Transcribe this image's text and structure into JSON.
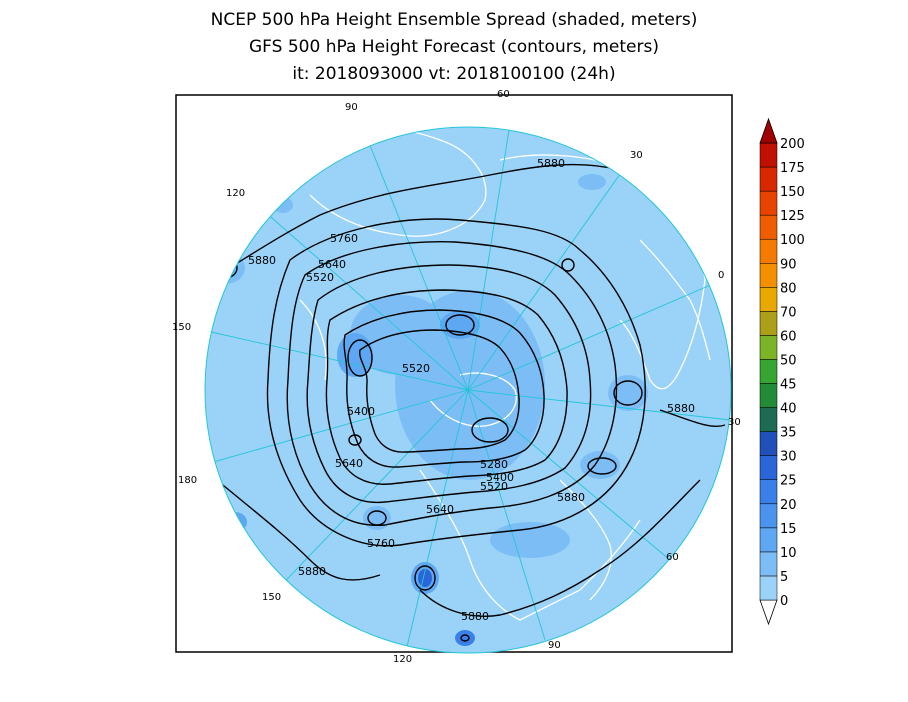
{
  "title": {
    "line1": "NCEP 500 hPa Height Ensemble Spread (shaded, meters)",
    "line2": "GFS 500 hPa Height Forecast (contours, meters)",
    "line3": "it: 2018093000       vt: 2018100100 (24h)"
  },
  "map": {
    "projection": "north-polar-stereographic",
    "ocean_color": "#9ad2f8",
    "land_outline_color": "#ffffff",
    "contour_color": "#000000",
    "longitude_labels": [
      {
        "text": "60"
      },
      {
        "text": "30"
      },
      {
        "text": "0"
      },
      {
        "text": "30"
      },
      {
        "text": "60"
      },
      {
        "text": "90"
      },
      {
        "text": "120"
      },
      {
        "text": "150"
      },
      {
        "text": "180"
      },
      {
        "text": "150"
      },
      {
        "text": "120"
      },
      {
        "text": "90"
      }
    ],
    "contour_labels": [
      {
        "text": "5880"
      },
      {
        "text": "5880"
      },
      {
        "text": "5760"
      },
      {
        "text": "5640"
      },
      {
        "text": "5520"
      },
      {
        "text": "5520"
      },
      {
        "text": "5400"
      },
      {
        "text": "5640"
      },
      {
        "text": "5880"
      },
      {
        "text": "5280"
      },
      {
        "text": "5400"
      },
      {
        "text": "5520"
      },
      {
        "text": "5880"
      },
      {
        "text": "5640"
      },
      {
        "text": "5760"
      },
      {
        "text": "5880"
      },
      {
        "text": "5880"
      }
    ]
  },
  "colorbar": {
    "labels": [
      "0",
      "5",
      "10",
      "15",
      "20",
      "25",
      "30",
      "35",
      "40",
      "45",
      "50",
      "60",
      "70",
      "80",
      "90",
      "100",
      "125",
      "150",
      "175",
      "200"
    ],
    "colors": [
      "#9ad2f8",
      "#7dbdf6",
      "#5ea7f2",
      "#4a94ee",
      "#3a80e8",
      "#2b66d8",
      "#2050b8",
      "#1c6b52",
      "#238a38",
      "#37a532",
      "#7cb428",
      "#aca018",
      "#e8a800",
      "#f49000",
      "#f47a00",
      "#f05c00",
      "#e84400",
      "#d82800",
      "#c01000",
      "#a00000"
    ]
  }
}
